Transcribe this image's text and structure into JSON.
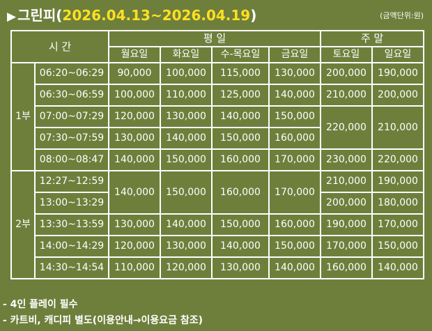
{
  "header": {
    "title_prefix": "그린피(",
    "date_range": "2026.04.13~2026.04.19",
    "title_suffix": ")",
    "unit_note": "(금액단위:원)"
  },
  "table": {
    "time_header": "시 간",
    "weekday_header": "평 일",
    "weekend_header": "주 말",
    "day_headers": [
      "월요일",
      "화요일",
      "수-목요일",
      "금요일",
      "토요일",
      "일요일"
    ],
    "sessions": [
      {
        "label": "1부",
        "rows": [
          {
            "time": "06:20~06:29",
            "mon": "90,000",
            "tue": "100,000",
            "wedthu": "115,000",
            "fri": "130,000",
            "sat": "200,000",
            "sun": "190,000"
          },
          {
            "time": "06:30~06:59",
            "mon": "100,000",
            "tue": "110,000",
            "wedthu": "125,000",
            "fri": "140,000",
            "sat": "210,000",
            "sun": "200,000"
          },
          {
            "time": "07:00~07:29",
            "mon": "120,000",
            "tue": "130,000",
            "wedthu": "140,000",
            "fri": "150,000"
          },
          {
            "time": "07:30~07:59",
            "mon": "130,000",
            "tue": "140,000",
            "wedthu": "150,000",
            "fri": "160,000"
          },
          {
            "time": "08:00~08:47",
            "mon": "140,000",
            "tue": "150,000",
            "wedthu": "160,000",
            "fri": "170,000",
            "sat": "230,000",
            "sun": "220,000"
          }
        ],
        "merged_weekend": {
          "sat": "220,000",
          "sun": "210,000"
        }
      },
      {
        "label": "2부",
        "rows": [
          {
            "time": "12:27~12:59",
            "sat": "210,000",
            "sun": "190,000"
          },
          {
            "time": "13:00~13:29",
            "sat": "200,000",
            "sun": "180,000"
          },
          {
            "time": "13:30~13:59",
            "mon": "130,000",
            "tue": "140,000",
            "wedthu": "150,000",
            "fri": "160,000",
            "sat": "190,000",
            "sun": "170,000"
          },
          {
            "time": "14:00~14:29",
            "mon": "120,000",
            "tue": "130,000",
            "wedthu": "140,000",
            "fri": "150,000",
            "sat": "170,000",
            "sun": "150,000"
          },
          {
            "time": "14:30~14:54",
            "mon": "110,000",
            "tue": "120,000",
            "wedthu": "130,000",
            "fri": "140,000",
            "sat": "160,000",
            "sun": "140,000"
          }
        ],
        "merged_weekday": {
          "mon": "140,000",
          "tue": "150,000",
          "wedthu": "160,000",
          "fri": "170,000"
        }
      }
    ]
  },
  "notes": [
    "- 4인 플레이 필수",
    "- 카트비, 캐디피 별도(이용안내→이용요금 참조)"
  ],
  "icons": {
    "title_marker": "triangle-right-icon"
  },
  "colors": {
    "background": "#6e7f3c",
    "date_highlight": "#ffe020",
    "text": "#ffffff"
  }
}
